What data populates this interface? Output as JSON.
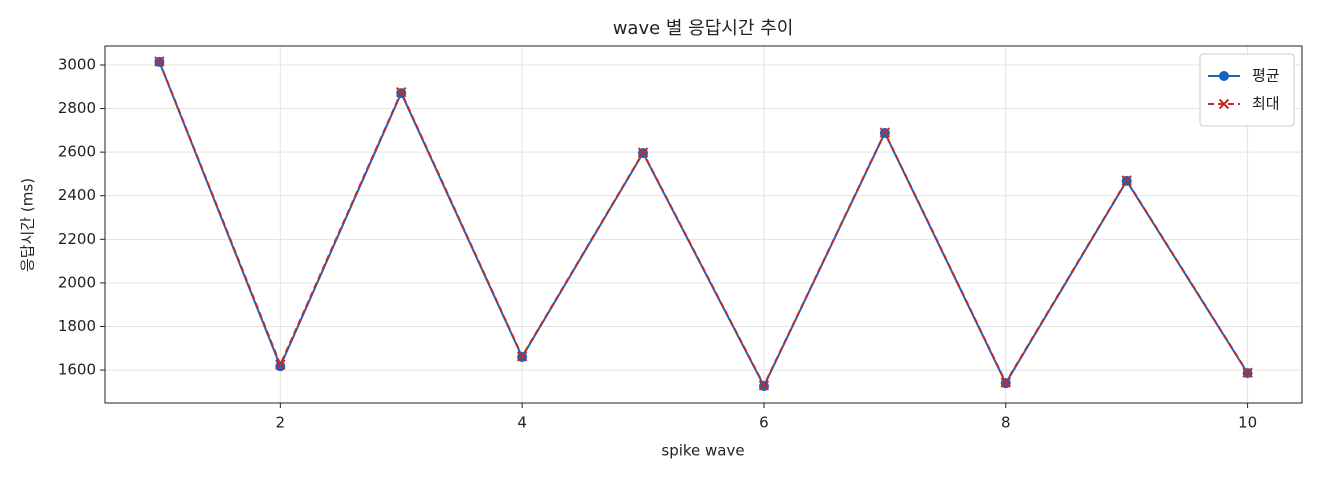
{
  "chart_data": {
    "type": "line",
    "title": "wave 별 응답시간 추이",
    "xlabel": "spike wave",
    "ylabel": "응답시간 (ms)",
    "x": [
      1,
      2,
      3,
      4,
      5,
      6,
      7,
      8,
      9,
      10
    ],
    "series": [
      {
        "name": "평균",
        "color": "#1565c0",
        "marker": "o",
        "linestyle": "solid",
        "values": [
          3014,
          1618,
          2871,
          1660,
          2596,
          1527,
          2688,
          1540,
          2468,
          1586
        ]
      },
      {
        "name": "최대",
        "color": "#c62828",
        "marker": "x",
        "linestyle": "dashed",
        "values": [
          3016,
          1625,
          2875,
          1663,
          2598,
          1530,
          2690,
          1543,
          2470,
          1588
        ]
      }
    ],
    "xlim": [
      0.55,
      10.45
    ],
    "xticks": [
      2,
      4,
      6,
      8,
      10
    ],
    "ylim": [
      1449,
      3087
    ],
    "yticks": [
      1600,
      1800,
      2000,
      2200,
      2400,
      2600,
      2800,
      3000
    ],
    "grid": true,
    "legend": "upper right"
  }
}
